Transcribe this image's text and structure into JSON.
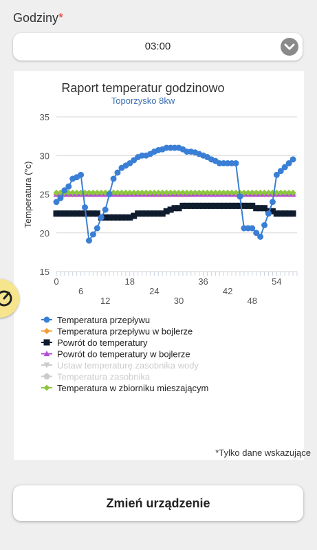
{
  "header": {
    "label": "Godziny",
    "required_mark": "*",
    "select_value": "03:00"
  },
  "note": "*Tylko dane wskazujące",
  "bottom_button": "Zmień urządzenie",
  "colors": {
    "flow": "#3a7fd5",
    "boiler_flow": "#f39c33",
    "return": "#0f1c2e",
    "boiler_return": "#b24fd6",
    "tank_set": "#cccccc",
    "tank": "#cccccc",
    "mixing_tank": "#8dc63f"
  },
  "chart_data": {
    "type": "line",
    "title": "Raport temperatur godzinowo",
    "subtitle": "Toporzysko 8kw",
    "ylabel": "Temperatura (°c)",
    "xlabel": "",
    "ylim": [
      15,
      35
    ],
    "yticks": [
      15,
      20,
      25,
      30,
      35
    ],
    "xlim": [
      0,
      59
    ],
    "xticks_top": [
      0,
      18,
      36,
      54
    ],
    "xticks_mid": [
      6,
      24,
      42
    ],
    "xticks_bottom": [
      12,
      30,
      48
    ],
    "grid": true,
    "legend_position": "bottom-left",
    "series": [
      {
        "name": "Temperatura przepływu",
        "marker": "circle",
        "color_key": "flow",
        "disabled": false,
        "values": [
          24.0,
          24.5,
          25.5,
          26.0,
          27.0,
          27.2,
          27.5,
          23.3,
          19.0,
          19.8,
          20.6,
          22.0,
          23.0,
          25.0,
          27.0,
          27.8,
          28.4,
          28.7,
          29.0,
          29.4,
          29.8,
          30.0,
          30.0,
          30.2,
          30.5,
          30.7,
          30.8,
          31.0,
          31.0,
          31.0,
          31.0,
          30.8,
          30.5,
          30.5,
          30.4,
          30.2,
          30.0,
          29.8,
          29.5,
          29.3,
          29.0,
          29.0,
          29.0,
          29.0,
          29.0,
          24.7,
          20.6,
          20.6,
          20.6,
          20.0,
          19.5,
          21.0,
          22.5,
          24.0,
          27.5,
          28.0,
          28.5,
          29.0,
          29.5
        ]
      },
      {
        "name": "Temperatura przepływu w bojlerze",
        "marker": "diamond",
        "color_key": "boiler_flow",
        "disabled": false,
        "values": [
          25.0,
          25.0,
          25.0,
          25.0,
          25.0,
          25.0,
          25.0,
          25.0,
          25.0,
          25.0,
          25.0,
          25.0,
          25.0,
          25.0,
          25.0,
          25.0,
          25.0,
          25.0,
          25.0,
          25.0,
          25.0,
          25.0,
          25.0,
          25.0,
          25.0,
          25.0,
          25.0,
          25.0,
          25.0,
          25.0,
          25.0,
          25.0,
          25.0,
          25.0,
          25.0,
          25.0,
          25.0,
          25.0,
          25.0,
          25.0,
          25.0,
          25.0,
          25.0,
          25.0,
          25.0,
          25.0,
          25.0,
          25.0,
          25.0,
          25.0,
          25.0,
          25.0,
          25.0,
          25.0,
          25.0,
          25.0,
          25.0,
          25.0,
          25.0
        ]
      },
      {
        "name": "Powrót do temperatury",
        "marker": "square",
        "color_key": "return",
        "disabled": false,
        "values": [
          22.5,
          22.5,
          22.5,
          22.5,
          22.5,
          22.5,
          22.5,
          22.5,
          22.5,
          22.5,
          22.5,
          22.0,
          22.0,
          22.0,
          22.0,
          22.0,
          22.0,
          22.0,
          22.0,
          22.2,
          22.5,
          22.5,
          22.5,
          22.5,
          22.5,
          22.5,
          22.5,
          22.8,
          23.0,
          23.2,
          23.2,
          23.5,
          23.5,
          23.5,
          23.5,
          23.5,
          23.5,
          23.5,
          23.5,
          23.5,
          23.5,
          23.5,
          23.5,
          23.5,
          23.5,
          23.5,
          23.5,
          23.5,
          23.5,
          23.2,
          23.2,
          23.2,
          22.8,
          22.8,
          22.5,
          22.5,
          22.5,
          22.5,
          22.5
        ]
      },
      {
        "name": "Powrót do temperatury w bojlerze",
        "marker": "triangle",
        "color_key": "boiler_return",
        "disabled": false,
        "values": [
          25.0,
          25.0,
          25.0,
          25.0,
          25.0,
          25.0,
          25.0,
          25.0,
          25.0,
          25.0,
          25.0,
          25.0,
          25.0,
          25.0,
          25.0,
          25.0,
          25.0,
          25.0,
          25.0,
          25.0,
          25.0,
          25.0,
          25.0,
          25.0,
          25.0,
          25.0,
          25.0,
          25.0,
          25.0,
          25.0,
          25.0,
          25.0,
          25.0,
          25.0,
          25.0,
          25.0,
          25.0,
          25.0,
          25.0,
          25.0,
          25.0,
          25.0,
          25.0,
          25.0,
          25.0,
          25.0,
          25.0,
          25.0,
          25.0,
          25.0,
          25.0,
          25.0,
          25.0,
          25.0,
          25.0,
          25.0,
          25.0,
          25.0,
          25.0
        ]
      },
      {
        "name": "Ustaw temperaturę zasobnika wody",
        "marker": "triangle-down",
        "color_key": "tank_set",
        "disabled": true,
        "values": []
      },
      {
        "name": "Temperatura zasobnika",
        "marker": "circle",
        "color_key": "tank",
        "disabled": true,
        "values": []
      },
      {
        "name": "Temperatura w zbiorniku mieszającym",
        "marker": "diamond",
        "color_key": "mixing_tank",
        "disabled": false,
        "values": [
          25.2,
          25.2,
          25.2,
          25.2,
          25.2,
          25.2,
          25.2,
          25.2,
          25.2,
          25.2,
          25.2,
          25.2,
          25.2,
          25.2,
          25.2,
          25.2,
          25.2,
          25.2,
          25.2,
          25.2,
          25.2,
          25.2,
          25.2,
          25.2,
          25.2,
          25.2,
          25.2,
          25.2,
          25.2,
          25.2,
          25.2,
          25.2,
          25.2,
          25.2,
          25.2,
          25.2,
          25.2,
          25.2,
          25.2,
          25.2,
          25.2,
          25.2,
          25.2,
          25.2,
          25.2,
          25.2,
          25.2,
          25.2,
          25.2,
          25.2,
          25.2,
          25.2,
          25.2,
          25.2,
          25.2,
          25.2,
          25.2,
          25.2,
          25.2
        ]
      }
    ]
  }
}
